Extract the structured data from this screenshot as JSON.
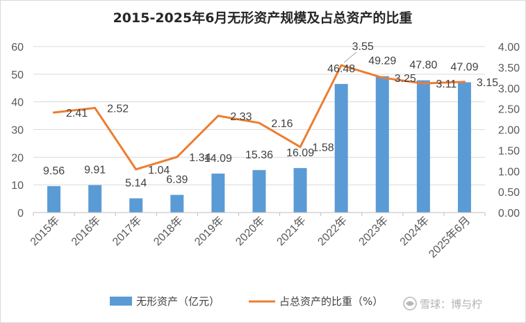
{
  "chart_data": {
    "type": "bar",
    "title": "2015-2025年6月无形资产规模及占总资产的比重",
    "categories": [
      "2015年",
      "2016年",
      "2017年",
      "2018年",
      "2019年",
      "2020年",
      "2021年",
      "2022年",
      "2023年",
      "2024年",
      "2025年6月"
    ],
    "series": [
      {
        "name": "无形资产（亿元）",
        "type": "bar",
        "axis": "left",
        "color": "#5B9BD5",
        "values": [
          9.56,
          9.91,
          5.14,
          6.39,
          14.09,
          15.36,
          16.09,
          46.48,
          49.29,
          47.8,
          47.09
        ],
        "labels": [
          "9.56",
          "9.91",
          "5.14",
          "6.39",
          "14.09",
          "15.36",
          "16.09",
          "46.48",
          "49.29",
          "47.80",
          "47.09"
        ]
      },
      {
        "name": "占总资产的比重（%）",
        "type": "line",
        "axis": "right",
        "color": "#ED7D31",
        "values": [
          2.41,
          2.52,
          1.04,
          1.34,
          2.33,
          2.16,
          1.58,
          3.55,
          3.25,
          3.11,
          3.15
        ],
        "labels": [
          "2.41",
          "2.52",
          "1.04",
          "1.34",
          "2.33",
          "2.16",
          "1.58",
          "3.55",
          "3.25",
          "3.11",
          "3.15"
        ]
      }
    ],
    "ylim_left": [
      0,
      60
    ],
    "yticks_left": [
      "0",
      "10",
      "20",
      "30",
      "40",
      "50",
      "60"
    ],
    "ylim_right": [
      0,
      4
    ],
    "yticks_right": [
      "0.00",
      "0.50",
      "1.00",
      "1.50",
      "2.00",
      "2.50",
      "3.00",
      "3.50",
      "4.00"
    ],
    "grid": true,
    "legend_position": "bottom"
  },
  "watermark": "雪球：博与柠"
}
